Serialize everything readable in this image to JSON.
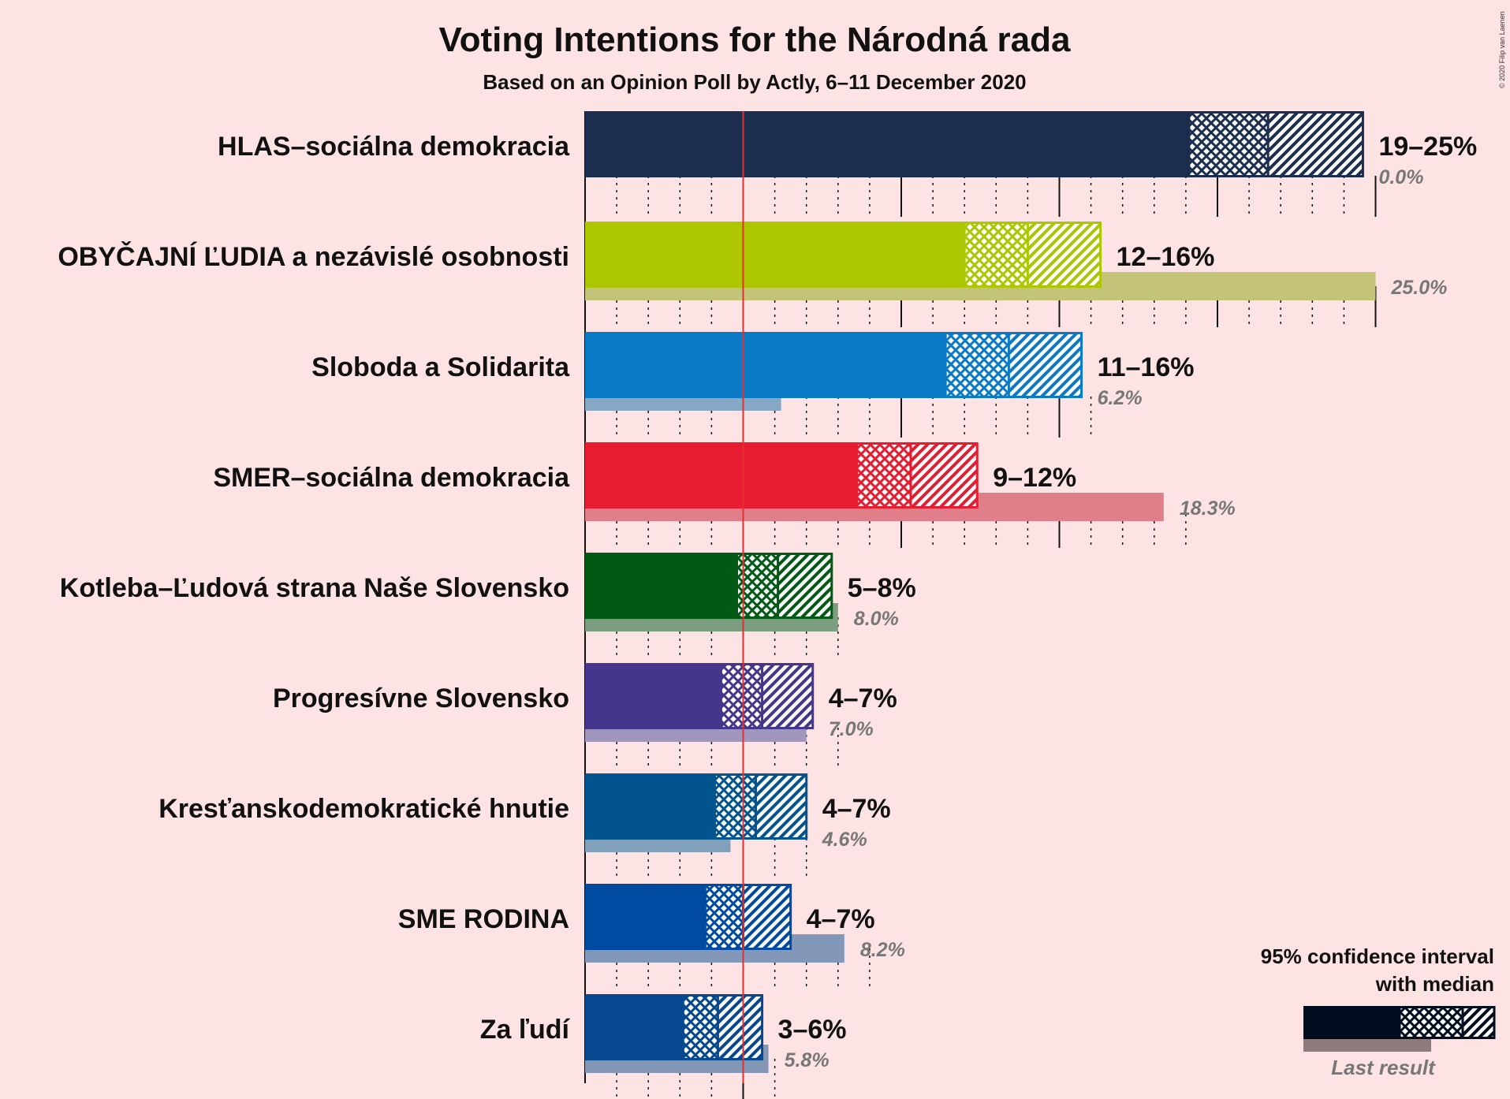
{
  "chart_data": {
    "type": "bar",
    "title": "Voting Intentions for the Národná rada",
    "subtitle": "Based on an Opinion Poll by Actly, 6–11 December 2020",
    "copyright": "© 2020 Filip van Laenen",
    "threshold": 5,
    "x_range": [
      0,
      25
    ],
    "parties": [
      {
        "name": "HLAS–sociálna demokracia",
        "color": "#1b2e4f",
        "last_color": "#8e97a7",
        "low": 19.1,
        "median": 21.6,
        "high": 24.6,
        "range_label": "19–25%",
        "last": 0.0,
        "last_label": "0.0%"
      },
      {
        "name": "OBYČAJNÍ ĽUDIA a nezávislé osobnosti",
        "color": "#acc700",
        "last_color": "#c3c47a",
        "low": 12.0,
        "median": 14.0,
        "high": 16.3,
        "range_label": "12–16%",
        "last": 25.0,
        "last_label": "25.0%"
      },
      {
        "name": "Sloboda a Solidarita",
        "color": "#0a7ac6",
        "last_color": "#87a8c5",
        "low": 11.4,
        "median": 13.4,
        "high": 15.7,
        "range_label": "11–16%",
        "last": 6.2,
        "last_label": "6.2%"
      },
      {
        "name": "SMER–sociálna demokracia",
        "color": "#e81c30",
        "last_color": "#e07f8a",
        "low": 8.6,
        "median": 10.3,
        "high": 12.4,
        "range_label": "9–12%",
        "last": 18.3,
        "last_label": "18.3%"
      },
      {
        "name": "Kotleba–Ľudová strana Naše Slovensko",
        "color": "#005a14",
        "last_color": "#7c9d7f",
        "low": 4.8,
        "median": 6.1,
        "high": 7.8,
        "range_label": "5–8%",
        "last": 8.0,
        "last_label": "8.0%"
      },
      {
        "name": "Progresívne Slovensko",
        "color": "#46358d",
        "last_color": "#a196bb",
        "low": 4.3,
        "median": 5.6,
        "high": 7.2,
        "range_label": "4–7%",
        "last": 7.0,
        "last_label": "7.0%"
      },
      {
        "name": "Kresťanskodemokratické hnutie",
        "color": "#01548e",
        "last_color": "#82a0b9",
        "low": 4.1,
        "median": 5.4,
        "high": 7.0,
        "range_label": "4–7%",
        "last": 4.6,
        "last_label": "4.6%"
      },
      {
        "name": "SME RODINA",
        "color": "#004ba2",
        "last_color": "#8398b8",
        "low": 3.8,
        "median": 5.0,
        "high": 6.5,
        "range_label": "4–7%",
        "last": 8.2,
        "last_label": "8.2%"
      },
      {
        "name": "Za ľudí",
        "color": "#06488f",
        "last_color": "#8496b6",
        "low": 3.1,
        "median": 4.2,
        "high": 5.6,
        "range_label": "3–6%",
        "last": 5.8,
        "last_label": "5.8%"
      }
    ],
    "legend": {
      "line1": "95% confidence interval",
      "line2": "with median",
      "last_result": "Last result",
      "color": "#000d1f",
      "last_color": "#8e7c7c"
    }
  }
}
